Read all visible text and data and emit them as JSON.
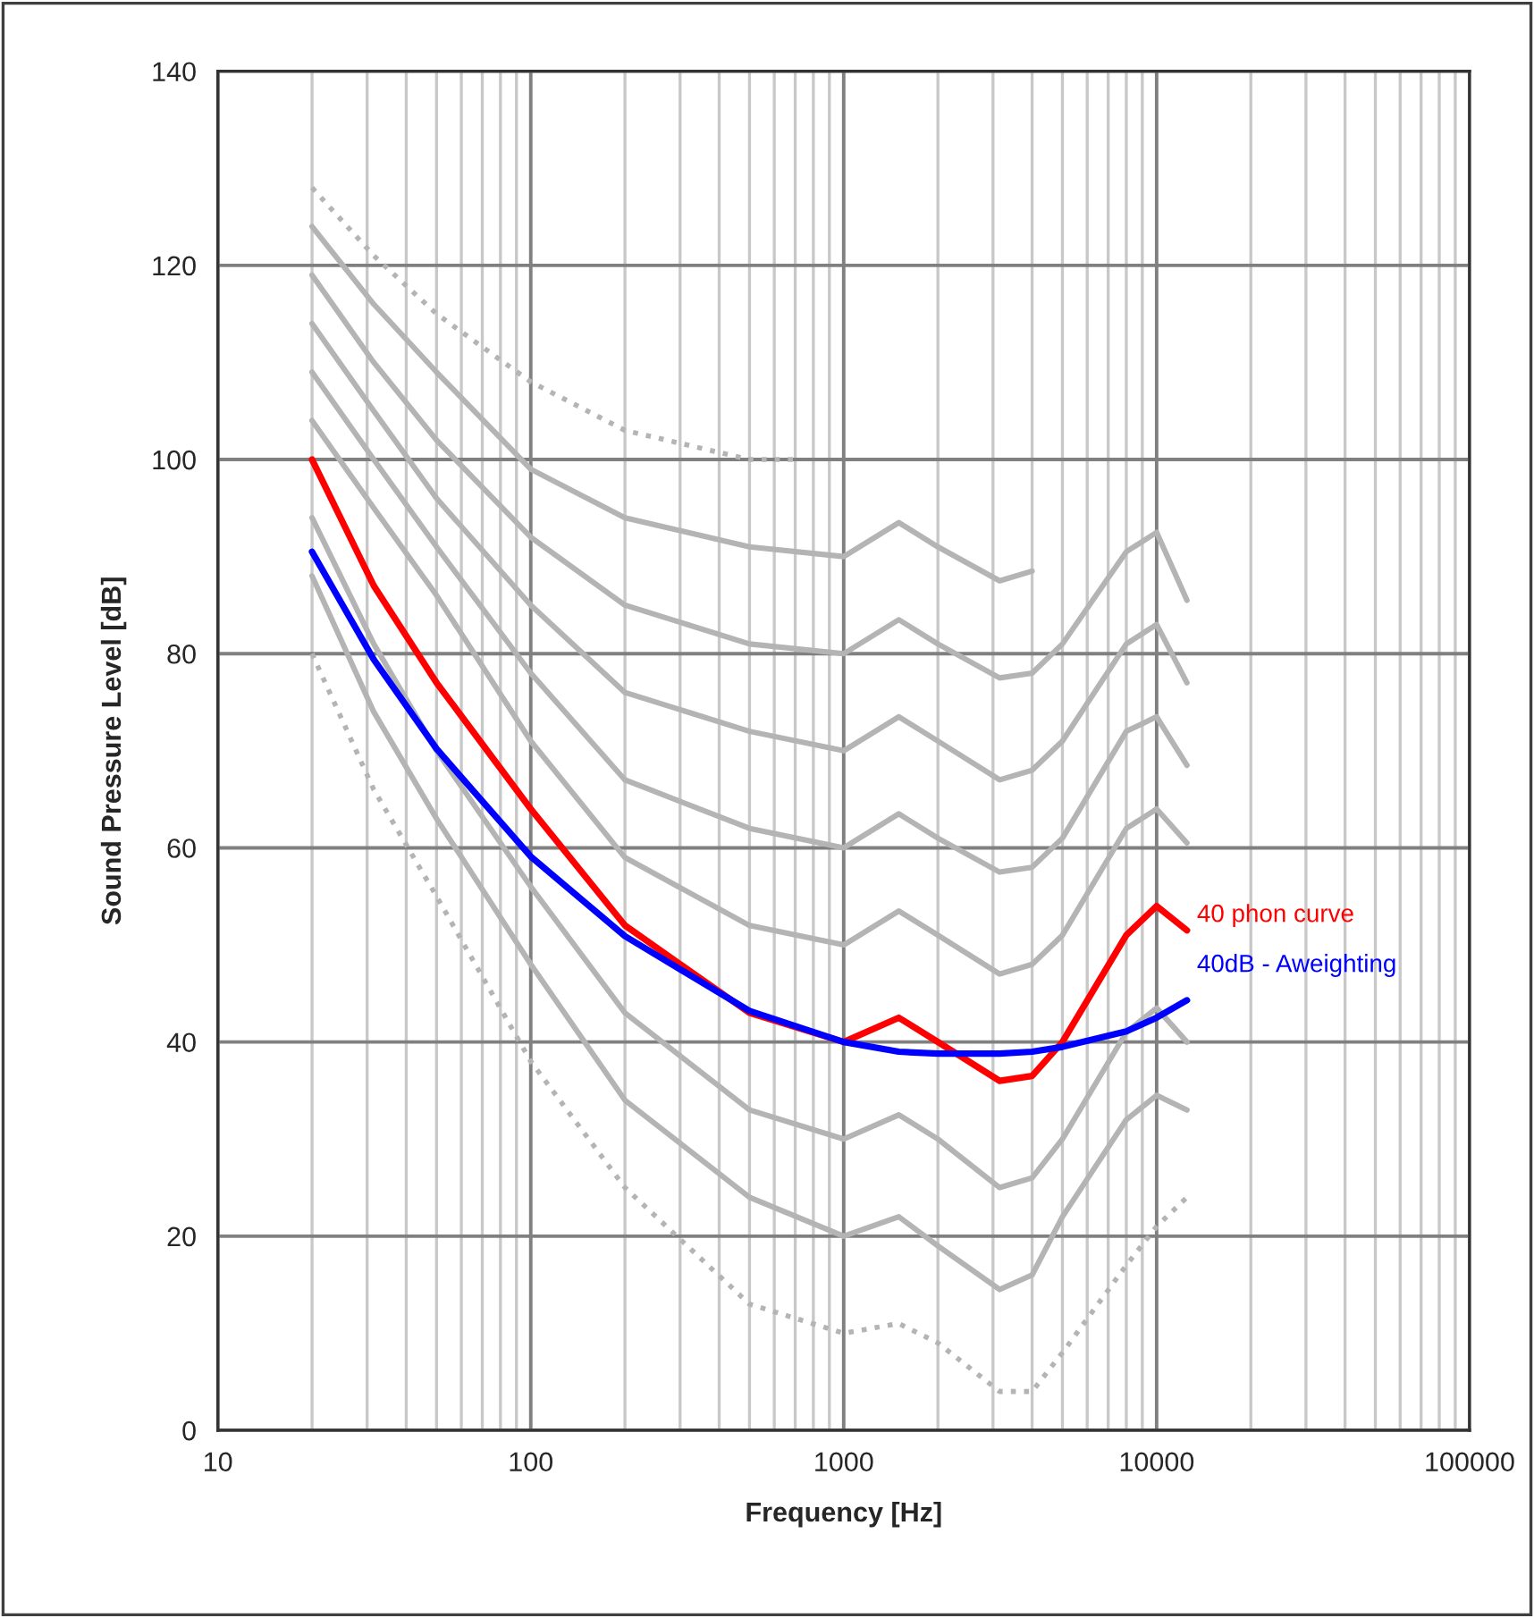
{
  "chart_data": {
    "type": "line",
    "xlabel": "Frequency [Hz]",
    "ylabel": "Sound Pressure Level [dB]",
    "log": "x",
    "xlim": [
      10,
      100000
    ],
    "ylim": [
      0,
      140
    ],
    "xticks": [
      10,
      100,
      1000,
      10000,
      100000
    ],
    "yticks": [
      0,
      20,
      40,
      60,
      80,
      100,
      120,
      140
    ],
    "grid": true,
    "x": [
      20,
      31.5,
      50,
      100,
      200,
      500,
      1000,
      1500,
      2000,
      3150,
      4000,
      5000,
      8000,
      10000,
      12500
    ],
    "series": [
      {
        "color": "#b4b4b4",
        "line_style": "dotted",
        "x": [
          20,
          31.5,
          50,
          100,
          200,
          500,
          700
        ],
        "values": [
          128,
          121,
          115,
          108,
          103,
          100,
          100
        ]
      },
      {
        "color": "#b4b4b4",
        "line_style": "solid",
        "values": [
          124,
          116,
          109,
          99,
          94,
          91,
          90,
          93.5,
          91,
          87.5,
          88.5,
          null,
          null,
          null,
          null
        ]
      },
      {
        "color": "#b4b4b4",
        "line_style": "solid",
        "values": [
          119,
          110,
          102,
          92,
          85,
          81,
          80,
          83.5,
          81,
          77.5,
          78,
          81,
          90.5,
          92.5,
          85.5
        ]
      },
      {
        "color": "#b4b4b4",
        "line_style": "solid",
        "values": [
          114,
          105,
          96,
          85,
          76,
          72,
          70,
          73.5,
          71,
          67,
          68,
          71,
          81,
          83,
          77
        ]
      },
      {
        "color": "#b4b4b4",
        "line_style": "solid",
        "values": [
          109,
          100,
          91,
          78,
          67,
          62,
          60,
          63.5,
          61,
          57.5,
          58,
          61,
          72,
          73.5,
          68.5
        ]
      },
      {
        "color": "#b4b4b4",
        "line_style": "solid",
        "values": [
          104,
          95,
          86,
          71,
          59,
          52,
          50,
          53.5,
          51,
          47,
          48,
          51,
          62,
          64,
          60.5
        ]
      },
      {
        "color": "#b4b4b4",
        "line_style": "solid",
        "values": [
          94,
          81,
          70,
          56,
          43,
          33,
          30,
          32.5,
          30,
          25,
          26,
          30,
          41,
          43.5,
          40
        ]
      },
      {
        "color": "#b4b4b4",
        "line_style": "solid",
        "values": [
          88,
          74,
          63,
          48,
          34,
          24,
          20,
          22,
          19,
          14.5,
          16,
          22,
          32,
          34.5,
          33
        ]
      },
      {
        "color": "#b4b4b4",
        "line_style": "dotted",
        "values": [
          80,
          66,
          55,
          38,
          25,
          13,
          10,
          11,
          9,
          4,
          4,
          8,
          17,
          21,
          24
        ]
      },
      {
        "name": "40 phon curve",
        "color": "#ff0000",
        "line_style": "solid",
        "values": [
          100,
          87,
          77,
          64,
          52,
          43,
          40,
          42.5,
          40,
          36,
          36.5,
          40,
          51,
          54,
          51.5
        ]
      },
      {
        "name": "40dB - Aweighting",
        "color": "#0000ff",
        "line_style": "solid",
        "values": [
          90.5,
          79.4,
          70.2,
          59.1,
          50.9,
          43.2,
          40,
          39,
          38.8,
          38.8,
          39,
          39.5,
          41.1,
          42.5,
          44.3
        ]
      }
    ]
  }
}
